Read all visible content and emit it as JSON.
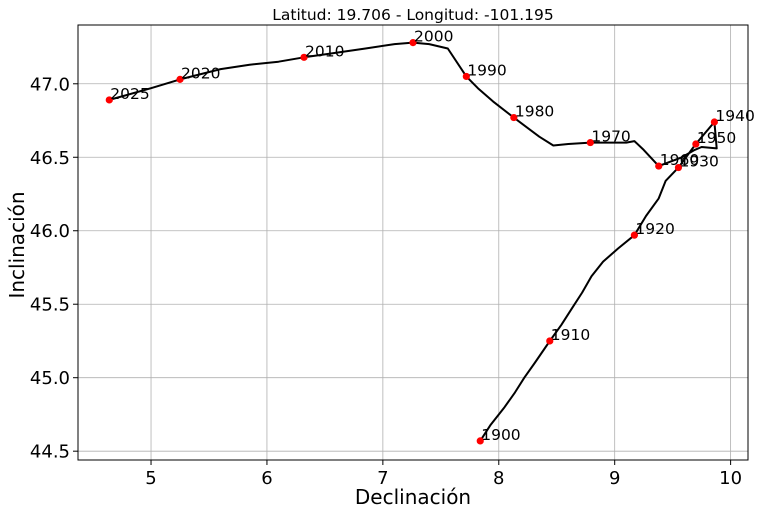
{
  "chart_data": {
    "type": "line",
    "title": "Latitud: 19.706 - Longitud: -101.195",
    "xlabel": "Declinación",
    "ylabel": "Inclinación",
    "xlim": [
      4.37,
      10.15
    ],
    "ylim": [
      44.44,
      47.4
    ],
    "xticks": [
      5,
      6,
      7,
      8,
      9,
      10
    ],
    "yticks": [
      44.5,
      45.0,
      45.5,
      46.0,
      46.5,
      47.0
    ],
    "ytick_labels": [
      "44.5",
      "45.0",
      "45.5",
      "46.0",
      "46.5",
      "47.0"
    ],
    "grid": true,
    "line_color": "#000000",
    "marker_color": "#ff0000",
    "curve": [
      [
        7.84,
        44.57
      ],
      [
        7.93,
        44.68
      ],
      [
        8.05,
        44.8
      ],
      [
        8.14,
        44.9
      ],
      [
        8.22,
        45.0
      ],
      [
        8.31,
        45.1
      ],
      [
        8.44,
        45.25
      ],
      [
        8.54,
        45.36
      ],
      [
        8.63,
        45.47
      ],
      [
        8.72,
        45.58
      ],
      [
        8.8,
        45.69
      ],
      [
        8.9,
        45.79
      ],
      [
        9.03,
        45.88
      ],
      [
        9.17,
        45.97
      ],
      [
        9.27,
        46.1
      ],
      [
        9.38,
        46.22
      ],
      [
        9.44,
        46.34
      ],
      [
        9.55,
        46.43
      ],
      [
        9.7,
        46.59
      ],
      [
        9.86,
        46.74
      ],
      [
        9.88,
        46.56
      ],
      [
        9.75,
        46.57
      ],
      [
        9.69,
        46.55
      ],
      [
        9.58,
        46.5
      ],
      [
        9.38,
        46.44
      ],
      [
        9.25,
        46.55
      ],
      [
        9.17,
        46.61
      ],
      [
        9.1,
        46.6
      ],
      [
        8.79,
        46.6
      ],
      [
        8.6,
        46.59
      ],
      [
        8.47,
        46.58
      ],
      [
        8.35,
        46.64
      ],
      [
        8.13,
        46.77
      ],
      [
        7.95,
        46.88
      ],
      [
        7.82,
        46.97
      ],
      [
        7.72,
        47.05
      ],
      [
        7.56,
        47.24
      ],
      [
        7.4,
        47.27
      ],
      [
        7.26,
        47.28
      ],
      [
        7.1,
        47.27
      ],
      [
        6.85,
        47.24
      ],
      [
        6.5,
        47.2
      ],
      [
        6.32,
        47.18
      ],
      [
        6.1,
        47.15
      ],
      [
        5.85,
        47.13
      ],
      [
        5.6,
        47.1
      ],
      [
        5.25,
        47.03
      ],
      [
        5.0,
        46.97
      ],
      [
        4.64,
        46.89
      ]
    ],
    "points": [
      {
        "label": "1900",
        "x": 7.84,
        "y": 44.57
      },
      {
        "label": "1910",
        "x": 8.44,
        "y": 45.25
      },
      {
        "label": "1920",
        "x": 9.17,
        "y": 45.97
      },
      {
        "label": "1930",
        "x": 9.55,
        "y": 46.43
      },
      {
        "label": "1940",
        "x": 9.86,
        "y": 46.74
      },
      {
        "label": "1950",
        "x": 9.7,
        "y": 46.59
      },
      {
        "label": "1960",
        "x": 9.38,
        "y": 46.44
      },
      {
        "label": "1970",
        "x": 8.79,
        "y": 46.6
      },
      {
        "label": "1980",
        "x": 8.13,
        "y": 46.77
      },
      {
        "label": "1990",
        "x": 7.72,
        "y": 47.05
      },
      {
        "label": "2000",
        "x": 7.26,
        "y": 47.28
      },
      {
        "label": "2010",
        "x": 6.32,
        "y": 47.18
      },
      {
        "label": "2020",
        "x": 5.25,
        "y": 47.03
      },
      {
        "label": "2025",
        "x": 4.64,
        "y": 46.89
      }
    ]
  }
}
